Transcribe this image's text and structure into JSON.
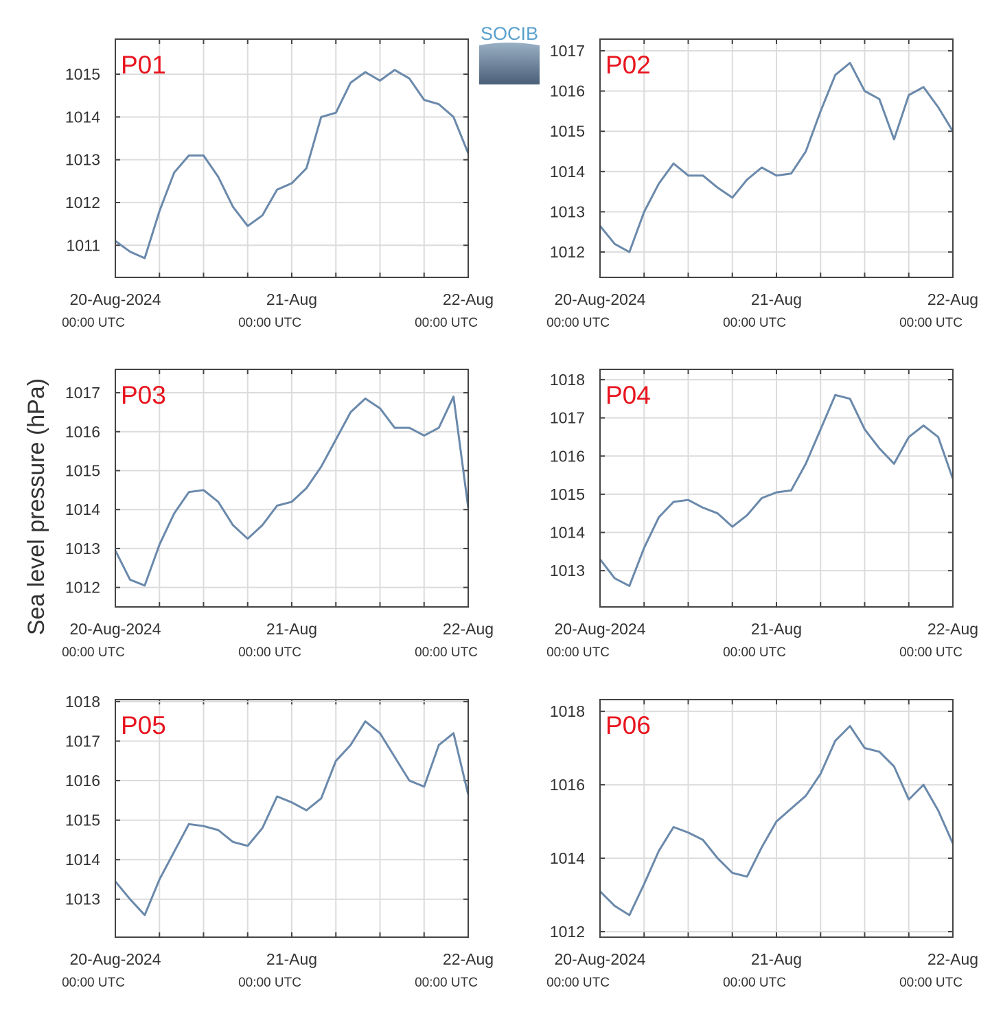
{
  "logo": "SOCIB",
  "ylabel": "Sea level pressure (hPa)",
  "chart_data": [
    {
      "type": "line",
      "title": "P01",
      "color": "#6a89ab",
      "grid": true,
      "x": [
        "2024-08-20T00:00",
        "2024-08-20T02:00",
        "2024-08-20T04:00",
        "2024-08-20T06:00",
        "2024-08-20T08:00",
        "2024-08-20T10:00",
        "2024-08-20T12:00",
        "2024-08-20T14:00",
        "2024-08-20T16:00",
        "2024-08-20T18:00",
        "2024-08-20T20:00",
        "2024-08-20T22:00",
        "2024-08-21T00:00",
        "2024-08-21T02:00",
        "2024-08-21T04:00",
        "2024-08-21T06:00",
        "2024-08-21T08:00",
        "2024-08-21T10:00",
        "2024-08-21T12:00",
        "2024-08-21T14:00",
        "2024-08-21T16:00",
        "2024-08-21T18:00",
        "2024-08-21T20:00",
        "2024-08-21T22:00",
        "2024-08-22T00:00"
      ],
      "values": [
        1011.1,
        1010.85,
        1010.7,
        1011.8,
        1012.7,
        1013.1,
        1013.1,
        1012.6,
        1011.9,
        1011.45,
        1011.7,
        1012.3,
        1012.45,
        1012.8,
        1014.0,
        1014.1,
        1014.8,
        1015.05,
        1014.85,
        1015.1,
        1014.9,
        1014.4,
        1014.3,
        1014.0,
        1013.15
      ],
      "xlim": [
        "2024-08-20T00:00",
        "2024-08-22T00:00"
      ],
      "xticks": [
        {
          "value": "2024-08-20T00:00",
          "label": "20-Aug-2024",
          "sublabel": "00:00 UTC"
        },
        {
          "value": "2024-08-20T06:00"
        },
        {
          "value": "2024-08-20T12:00"
        },
        {
          "value": "2024-08-20T18:00"
        },
        {
          "value": "2024-08-21T00:00",
          "label": "21-Aug",
          "sublabel": "00:00 UTC"
        },
        {
          "value": "2024-08-21T06:00"
        },
        {
          "value": "2024-08-21T12:00"
        },
        {
          "value": "2024-08-21T18:00"
        },
        {
          "value": "2024-08-22T00:00",
          "label": "22-Aug",
          "sublabel": "00:00 UTC"
        }
      ],
      "ylim": [
        1010.25,
        1015.82
      ],
      "yticks": [
        1011,
        1012,
        1013,
        1014,
        1015
      ]
    },
    {
      "type": "line",
      "title": "P02",
      "color": "#6a89ab",
      "grid": true,
      "x": [
        "2024-08-20T00:00",
        "2024-08-20T02:00",
        "2024-08-20T04:00",
        "2024-08-20T06:00",
        "2024-08-20T08:00",
        "2024-08-20T10:00",
        "2024-08-20T12:00",
        "2024-08-20T14:00",
        "2024-08-20T16:00",
        "2024-08-20T18:00",
        "2024-08-20T20:00",
        "2024-08-20T22:00",
        "2024-08-21T00:00",
        "2024-08-21T02:00",
        "2024-08-21T04:00",
        "2024-08-21T06:00",
        "2024-08-21T08:00",
        "2024-08-21T10:00",
        "2024-08-21T12:00",
        "2024-08-21T14:00",
        "2024-08-21T16:00",
        "2024-08-21T18:00",
        "2024-08-21T20:00",
        "2024-08-21T22:00",
        "2024-08-22T00:00"
      ],
      "values": [
        1012.65,
        1012.2,
        1012.0,
        1013.0,
        1013.7,
        1014.2,
        1013.9,
        1013.9,
        1013.6,
        1013.35,
        1013.8,
        1014.1,
        1013.9,
        1013.95,
        1014.5,
        1015.5,
        1016.4,
        1016.7,
        1016.0,
        1015.8,
        1014.8,
        1015.9,
        1016.1,
        1015.6,
        1015.0
      ],
      "xlim": [
        "2024-08-20T00:00",
        "2024-08-22T00:00"
      ],
      "xticks": [
        {
          "value": "2024-08-20T00:00",
          "label": "20-Aug-2024",
          "sublabel": "00:00 UTC"
        },
        {
          "value": "2024-08-20T06:00"
        },
        {
          "value": "2024-08-20T12:00"
        },
        {
          "value": "2024-08-20T18:00"
        },
        {
          "value": "2024-08-21T00:00",
          "label": "21-Aug",
          "sublabel": "00:00 UTC"
        },
        {
          "value": "2024-08-21T06:00"
        },
        {
          "value": "2024-08-21T12:00"
        },
        {
          "value": "2024-08-21T18:00"
        },
        {
          "value": "2024-08-22T00:00",
          "label": "22-Aug",
          "sublabel": "00:00 UTC"
        }
      ],
      "ylim": [
        1011.37,
        1017.29
      ],
      "yticks": [
        1012,
        1013,
        1014,
        1015,
        1016,
        1017
      ]
    },
    {
      "type": "line",
      "title": "P03",
      "color": "#6a89ab",
      "grid": true,
      "x": [
        "2024-08-20T00:00",
        "2024-08-20T02:00",
        "2024-08-20T04:00",
        "2024-08-20T06:00",
        "2024-08-20T08:00",
        "2024-08-20T10:00",
        "2024-08-20T12:00",
        "2024-08-20T14:00",
        "2024-08-20T16:00",
        "2024-08-20T18:00",
        "2024-08-20T20:00",
        "2024-08-20T22:00",
        "2024-08-21T00:00",
        "2024-08-21T02:00",
        "2024-08-21T04:00",
        "2024-08-21T06:00",
        "2024-08-21T08:00",
        "2024-08-21T10:00",
        "2024-08-21T12:00",
        "2024-08-21T14:00",
        "2024-08-21T16:00",
        "2024-08-21T18:00",
        "2024-08-21T20:00",
        "2024-08-21T22:00",
        "2024-08-22T00:00"
      ],
      "values": [
        1012.95,
        1012.2,
        1012.05,
        1013.1,
        1013.9,
        1014.45,
        1014.5,
        1014.2,
        1013.6,
        1013.25,
        1013.6,
        1014.1,
        1014.2,
        1014.55,
        1015.1,
        1015.8,
        1016.5,
        1016.85,
        1016.6,
        1016.1,
        1016.1,
        1015.9,
        1016.1,
        1016.9,
        1014.05
      ],
      "xlim": [
        "2024-08-20T00:00",
        "2024-08-22T00:00"
      ],
      "xticks": [
        {
          "value": "2024-08-20T00:00",
          "label": "20-Aug-2024",
          "sublabel": "00:00 UTC"
        },
        {
          "value": "2024-08-20T06:00"
        },
        {
          "value": "2024-08-20T12:00"
        },
        {
          "value": "2024-08-20T18:00"
        },
        {
          "value": "2024-08-21T00:00",
          "label": "21-Aug",
          "sublabel": "00:00 UTC"
        },
        {
          "value": "2024-08-21T06:00"
        },
        {
          "value": "2024-08-21T12:00"
        },
        {
          "value": "2024-08-21T18:00"
        },
        {
          "value": "2024-08-22T00:00",
          "label": "22-Aug",
          "sublabel": "00:00 UTC"
        }
      ],
      "ylim": [
        1011.5,
        1017.6
      ],
      "yticks": [
        1012,
        1013,
        1014,
        1015,
        1016,
        1017
      ]
    },
    {
      "type": "line",
      "title": "P04",
      "color": "#6a89ab",
      "grid": true,
      "x": [
        "2024-08-20T00:00",
        "2024-08-20T02:00",
        "2024-08-20T04:00",
        "2024-08-20T06:00",
        "2024-08-20T08:00",
        "2024-08-20T10:00",
        "2024-08-20T12:00",
        "2024-08-20T14:00",
        "2024-08-20T16:00",
        "2024-08-20T18:00",
        "2024-08-20T20:00",
        "2024-08-20T22:00",
        "2024-08-21T00:00",
        "2024-08-21T02:00",
        "2024-08-21T04:00",
        "2024-08-21T06:00",
        "2024-08-21T08:00",
        "2024-08-21T10:00",
        "2024-08-21T12:00",
        "2024-08-21T14:00",
        "2024-08-21T16:00",
        "2024-08-21T18:00",
        "2024-08-21T20:00",
        "2024-08-21T22:00",
        "2024-08-22T00:00"
      ],
      "values": [
        1013.3,
        1012.8,
        1012.6,
        1013.6,
        1014.4,
        1014.8,
        1014.85,
        1014.65,
        1014.5,
        1014.15,
        1014.45,
        1014.9,
        1015.05,
        1015.1,
        1015.8,
        1016.7,
        1017.6,
        1017.5,
        1016.7,
        1016.2,
        1015.8,
        1016.5,
        1016.8,
        1016.5,
        1015.4
      ],
      "xlim": [
        "2024-08-20T00:00",
        "2024-08-22T00:00"
      ],
      "xticks": [
        {
          "value": "2024-08-20T00:00",
          "label": "20-Aug-2024",
          "sublabel": "00:00 UTC"
        },
        {
          "value": "2024-08-20T06:00"
        },
        {
          "value": "2024-08-20T12:00"
        },
        {
          "value": "2024-08-20T18:00"
        },
        {
          "value": "2024-08-21T00:00",
          "label": "21-Aug",
          "sublabel": "00:00 UTC"
        },
        {
          "value": "2024-08-21T06:00"
        },
        {
          "value": "2024-08-21T12:00"
        },
        {
          "value": "2024-08-21T18:00"
        },
        {
          "value": "2024-08-22T00:00",
          "label": "22-Aug",
          "sublabel": "00:00 UTC"
        }
      ],
      "ylim": [
        1012.05,
        1018.27
      ],
      "yticks": [
        1013,
        1014,
        1015,
        1016,
        1017,
        1018
      ]
    },
    {
      "type": "line",
      "title": "P05",
      "color": "#6a89ab",
      "grid": true,
      "x": [
        "2024-08-20T00:00",
        "2024-08-20T02:00",
        "2024-08-20T04:00",
        "2024-08-20T06:00",
        "2024-08-20T08:00",
        "2024-08-20T10:00",
        "2024-08-20T12:00",
        "2024-08-20T14:00",
        "2024-08-20T16:00",
        "2024-08-20T18:00",
        "2024-08-20T20:00",
        "2024-08-20T22:00",
        "2024-08-21T00:00",
        "2024-08-21T02:00",
        "2024-08-21T04:00",
        "2024-08-21T06:00",
        "2024-08-21T08:00",
        "2024-08-21T10:00",
        "2024-08-21T12:00",
        "2024-08-21T14:00",
        "2024-08-21T16:00",
        "2024-08-21T18:00",
        "2024-08-21T20:00",
        "2024-08-21T22:00",
        "2024-08-22T00:00"
      ],
      "values": [
        1013.45,
        1013.0,
        1012.6,
        1013.5,
        1014.2,
        1014.9,
        1014.85,
        1014.75,
        1014.45,
        1014.35,
        1014.8,
        1015.6,
        1015.45,
        1015.25,
        1015.55,
        1016.5,
        1016.9,
        1017.5,
        1017.2,
        1016.6,
        1016.0,
        1015.85,
        1016.9,
        1017.2,
        1015.65
      ],
      "xlim": [
        "2024-08-20T00:00",
        "2024-08-22T00:00"
      ],
      "xticks": [
        {
          "value": "2024-08-20T00:00",
          "label": "20-Aug-2024",
          "sublabel": "00:00 UTC"
        },
        {
          "value": "2024-08-20T06:00"
        },
        {
          "value": "2024-08-20T12:00"
        },
        {
          "value": "2024-08-20T18:00"
        },
        {
          "value": "2024-08-21T00:00",
          "label": "21-Aug",
          "sublabel": "00:00 UTC"
        },
        {
          "value": "2024-08-21T06:00"
        },
        {
          "value": "2024-08-21T12:00"
        },
        {
          "value": "2024-08-21T18:00"
        },
        {
          "value": "2024-08-22T00:00",
          "label": "22-Aug",
          "sublabel": "00:00 UTC"
        }
      ],
      "ylim": [
        1012.04,
        1018.05
      ],
      "yticks": [
        1013,
        1014,
        1015,
        1016,
        1017,
        1018
      ]
    },
    {
      "type": "line",
      "title": "P06",
      "color": "#6a89ab",
      "grid": true,
      "x": [
        "2024-08-20T00:00",
        "2024-08-20T02:00",
        "2024-08-20T04:00",
        "2024-08-20T06:00",
        "2024-08-20T08:00",
        "2024-08-20T10:00",
        "2024-08-20T12:00",
        "2024-08-20T14:00",
        "2024-08-20T16:00",
        "2024-08-20T18:00",
        "2024-08-20T20:00",
        "2024-08-20T22:00",
        "2024-08-21T00:00",
        "2024-08-21T02:00",
        "2024-08-21T04:00",
        "2024-08-21T06:00",
        "2024-08-21T08:00",
        "2024-08-21T10:00",
        "2024-08-21T12:00",
        "2024-08-21T14:00",
        "2024-08-21T16:00",
        "2024-08-21T18:00",
        "2024-08-21T20:00",
        "2024-08-21T22:00",
        "2024-08-22T00:00"
      ],
      "values": [
        1013.1,
        1012.7,
        1012.45,
        1013.3,
        1014.2,
        1014.85,
        1014.7,
        1014.5,
        1014.0,
        1013.6,
        1013.5,
        1014.3,
        1015.0,
        1015.35,
        1015.7,
        1016.3,
        1017.2,
        1017.6,
        1017.0,
        1016.9,
        1016.5,
        1015.6,
        1016.0,
        1015.3,
        1014.4
      ],
      "xlim": [
        "2024-08-20T00:00",
        "2024-08-22T00:00"
      ],
      "xticks": [
        {
          "value": "2024-08-20T00:00",
          "label": "20-Aug-2024",
          "sublabel": "00:00 UTC"
        },
        {
          "value": "2024-08-20T06:00"
        },
        {
          "value": "2024-08-20T12:00"
        },
        {
          "value": "2024-08-20T18:00"
        },
        {
          "value": "2024-08-21T00:00",
          "label": "21-Aug",
          "sublabel": "00:00 UTC"
        },
        {
          "value": "2024-08-21T06:00"
        },
        {
          "value": "2024-08-21T12:00"
        },
        {
          "value": "2024-08-21T18:00"
        },
        {
          "value": "2024-08-22T00:00",
          "label": "22-Aug",
          "sublabel": "00:00 UTC"
        }
      ],
      "ylim": [
        1011.85,
        1018.32
      ],
      "yticks": [
        1012,
        1014,
        1016,
        1018
      ]
    }
  ]
}
